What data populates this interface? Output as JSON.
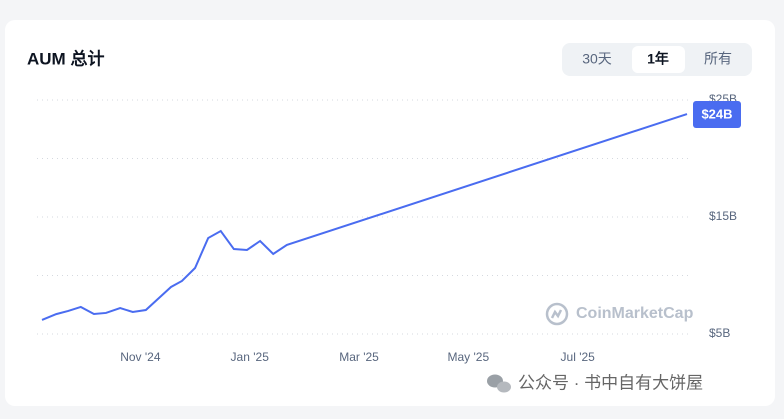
{
  "chart_data": {
    "type": "line",
    "title": "AUM 总计",
    "x": [
      0.2,
      0.46,
      0.68,
      0.91,
      1.15,
      1.37,
      1.63,
      1.86,
      2.1,
      2.36,
      2.56,
      2.76,
      3.0,
      3.24,
      3.47,
      3.71,
      3.95,
      4.19,
      4.43,
      4.68,
      12.0
    ],
    "values": [
      6.2,
      6.7,
      6.97,
      7.31,
      6.71,
      6.8,
      7.22,
      6.88,
      7.05,
      8.16,
      9.02,
      9.53,
      10.64,
      13.2,
      13.8,
      12.26,
      12.18,
      12.95,
      11.84,
      12.61,
      23.8
    ],
    "value_labels": [
      null,
      null,
      null,
      null,
      null,
      null,
      null,
      null,
      null,
      null,
      null,
      null,
      null,
      null,
      null,
      null,
      null,
      null,
      null,
      null,
      "$24B"
    ],
    "color": "#4a6cf0",
    "xlim": [
      0.2,
      12.0
    ],
    "xticks": [
      {
        "value": 2,
        "label": "Nov '24"
      },
      {
        "value": 4,
        "label": "Jan '25"
      },
      {
        "value": 6,
        "label": "Mar '25"
      },
      {
        "value": 8,
        "label": "May '25"
      },
      {
        "value": 10,
        "label": "Jul '25"
      }
    ],
    "ylim": [
      5,
      25
    ],
    "yticks": [
      {
        "value": 5,
        "label": "$5B"
      },
      {
        "value": 10,
        "label": null
      },
      {
        "value": 15,
        "label": "$15B"
      },
      {
        "value": 20,
        "label": null
      },
      {
        "value": 25,
        "label": "$25B"
      }
    ],
    "grid": true
  },
  "tabs": {
    "options": [
      "30天",
      "1年",
      "所有"
    ],
    "active": 1
  },
  "watermark": "CoinMarketCap",
  "footer": "公众号 · 书中自有大饼屋"
}
